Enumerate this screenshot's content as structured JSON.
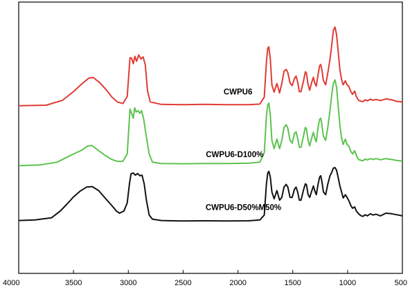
{
  "chart_data": {
    "type": "line",
    "title": "",
    "xlabel": "",
    "ylabel": "",
    "xlim": [
      4000,
      500
    ],
    "ylim": [
      0,
      1
    ],
    "x_ticks": [
      4000,
      3500,
      3000,
      2500,
      2000,
      1500,
      1000,
      500
    ],
    "x_tick_labels": [
      "4000",
      "3500",
      "3000",
      "2500",
      "2000",
      "1500",
      "1000",
      "500"
    ],
    "grid": false,
    "series": [
      {
        "name": "CWPU6",
        "color": "#e03a33",
        "label_at": [
          2000,
          0.66
        ],
        "points": [
          [
            4000,
            0.618
          ],
          [
            3750,
            0.62
          ],
          [
            3600,
            0.638
          ],
          [
            3500,
            0.67
          ],
          [
            3420,
            0.7
          ],
          [
            3360,
            0.72
          ],
          [
            3320,
            0.722
          ],
          [
            3260,
            0.703
          ],
          [
            3200,
            0.676
          ],
          [
            3150,
            0.65
          ],
          [
            3100,
            0.632
          ],
          [
            3050,
            0.626
          ],
          [
            3010,
            0.652
          ],
          [
            2985,
            0.795
          ],
          [
            2970,
            0.793
          ],
          [
            2955,
            0.773
          ],
          [
            2940,
            0.8
          ],
          [
            2925,
            0.782
          ],
          [
            2905,
            0.805
          ],
          [
            2885,
            0.79
          ],
          [
            2865,
            0.798
          ],
          [
            2845,
            0.768
          ],
          [
            2825,
            0.673
          ],
          [
            2800,
            0.632
          ],
          [
            2700,
            0.623
          ],
          [
            2500,
            0.622
          ],
          [
            2300,
            0.623
          ],
          [
            2100,
            0.622
          ],
          [
            1900,
            0.622
          ],
          [
            1800,
            0.624
          ],
          [
            1760,
            0.65
          ],
          [
            1740,
            0.78
          ],
          [
            1728,
            0.83
          ],
          [
            1718,
            0.835
          ],
          [
            1705,
            0.79
          ],
          [
            1690,
            0.695
          ],
          [
            1670,
            0.668
          ],
          [
            1645,
            0.7
          ],
          [
            1620,
            0.665
          ],
          [
            1600,
            0.7
          ],
          [
            1580,
            0.745
          ],
          [
            1560,
            0.752
          ],
          [
            1545,
            0.74
          ],
          [
            1525,
            0.702
          ],
          [
            1505,
            0.692
          ],
          [
            1485,
            0.718
          ],
          [
            1470,
            0.727
          ],
          [
            1455,
            0.705
          ],
          [
            1440,
            0.67
          ],
          [
            1425,
            0.67
          ],
          [
            1400,
            0.712
          ],
          [
            1385,
            0.743
          ],
          [
            1375,
            0.738
          ],
          [
            1360,
            0.695
          ],
          [
            1345,
            0.675
          ],
          [
            1330,
            0.7
          ],
          [
            1312,
            0.723
          ],
          [
            1300,
            0.702
          ],
          [
            1285,
            0.69
          ],
          [
            1268,
            0.735
          ],
          [
            1255,
            0.765
          ],
          [
            1245,
            0.77
          ],
          [
            1235,
            0.752
          ],
          [
            1220,
            0.71
          ],
          [
            1200,
            0.695
          ],
          [
            1180,
            0.74
          ],
          [
            1160,
            0.79
          ],
          [
            1145,
            0.84
          ],
          [
            1130,
            0.895
          ],
          [
            1115,
            0.908
          ],
          [
            1100,
            0.88
          ],
          [
            1085,
            0.815
          ],
          [
            1070,
            0.75
          ],
          [
            1055,
            0.715
          ],
          [
            1040,
            0.695
          ],
          [
            1020,
            0.71
          ],
          [
            1005,
            0.695
          ],
          [
            990,
            0.69
          ],
          [
            970,
            0.67
          ],
          [
            955,
            0.66
          ],
          [
            935,
            0.672
          ],
          [
            920,
            0.652
          ],
          [
            900,
            0.638
          ],
          [
            880,
            0.635
          ],
          [
            860,
            0.633
          ],
          [
            840,
            0.64
          ],
          [
            820,
            0.636
          ],
          [
            790,
            0.642
          ],
          [
            770,
            0.638
          ],
          [
            740,
            0.641
          ],
          [
            700,
            0.637
          ],
          [
            650,
            0.643
          ],
          [
            600,
            0.64
          ],
          [
            550,
            0.634
          ],
          [
            500,
            0.632
          ]
        ]
      },
      {
        "name": "CWPU6-D100%",
        "color": "#5cc24e",
        "label_at": [
          2030,
          0.429
        ],
        "points": [
          [
            4000,
            0.397
          ],
          [
            3800,
            0.4
          ],
          [
            3650,
            0.41
          ],
          [
            3560,
            0.428
          ],
          [
            3500,
            0.44
          ],
          [
            3420,
            0.455
          ],
          [
            3370,
            0.47
          ],
          [
            3330,
            0.471
          ],
          [
            3280,
            0.455
          ],
          [
            3220,
            0.437
          ],
          [
            3150,
            0.42
          ],
          [
            3100,
            0.413
          ],
          [
            3050,
            0.413
          ],
          [
            3010,
            0.44
          ],
          [
            2985,
            0.605
          ],
          [
            2970,
            0.59
          ],
          [
            2955,
            0.572
          ],
          [
            2942,
            0.61
          ],
          [
            2928,
            0.595
          ],
          [
            2912,
            0.6
          ],
          [
            2895,
            0.59
          ],
          [
            2880,
            0.6
          ],
          [
            2860,
            0.57
          ],
          [
            2840,
            0.515
          ],
          [
            2810,
            0.44
          ],
          [
            2780,
            0.41
          ],
          [
            2700,
            0.405
          ],
          [
            2500,
            0.404
          ],
          [
            2300,
            0.405
          ],
          [
            2100,
            0.405
          ],
          [
            1900,
            0.406
          ],
          [
            1800,
            0.41
          ],
          [
            1760,
            0.445
          ],
          [
            1740,
            0.58
          ],
          [
            1728,
            0.62
          ],
          [
            1718,
            0.628
          ],
          [
            1705,
            0.585
          ],
          [
            1690,
            0.49
          ],
          [
            1670,
            0.46
          ],
          [
            1645,
            0.495
          ],
          [
            1620,
            0.46
          ],
          [
            1600,
            0.49
          ],
          [
            1580,
            0.538
          ],
          [
            1560,
            0.548
          ],
          [
            1545,
            0.535
          ],
          [
            1525,
            0.49
          ],
          [
            1505,
            0.48
          ],
          [
            1485,
            0.515
          ],
          [
            1470,
            0.522
          ],
          [
            1455,
            0.498
          ],
          [
            1440,
            0.465
          ],
          [
            1425,
            0.465
          ],
          [
            1400,
            0.51
          ],
          [
            1385,
            0.538
          ],
          [
            1375,
            0.533
          ],
          [
            1360,
            0.49
          ],
          [
            1345,
            0.47
          ],
          [
            1330,
            0.495
          ],
          [
            1312,
            0.52
          ],
          [
            1300,
            0.5
          ],
          [
            1285,
            0.485
          ],
          [
            1268,
            0.54
          ],
          [
            1255,
            0.568
          ],
          [
            1245,
            0.572
          ],
          [
            1235,
            0.55
          ],
          [
            1220,
            0.505
          ],
          [
            1200,
            0.49
          ],
          [
            1180,
            0.54
          ],
          [
            1160,
            0.6
          ],
          [
            1145,
            0.655
          ],
          [
            1130,
            0.7
          ],
          [
            1115,
            0.713
          ],
          [
            1100,
            0.685
          ],
          [
            1085,
            0.615
          ],
          [
            1070,
            0.545
          ],
          [
            1055,
            0.5
          ],
          [
            1040,
            0.475
          ],
          [
            1020,
            0.495
          ],
          [
            1005,
            0.475
          ],
          [
            990,
            0.47
          ],
          [
            970,
            0.45
          ],
          [
            955,
            0.44
          ],
          [
            935,
            0.452
          ],
          [
            920,
            0.435
          ],
          [
            900,
            0.42
          ],
          [
            880,
            0.417
          ],
          [
            860,
            0.415
          ],
          [
            840,
            0.422
          ],
          [
            820,
            0.418
          ],
          [
            790,
            0.423
          ],
          [
            770,
            0.42
          ],
          [
            740,
            0.423
          ],
          [
            700,
            0.419
          ],
          [
            650,
            0.423
          ],
          [
            600,
            0.42
          ],
          [
            550,
            0.416
          ],
          [
            500,
            0.414
          ]
        ]
      },
      {
        "name": "CWPU6-D50%M50%",
        "color": "#111111",
        "label_at": [
          1950,
          0.233
        ],
        "points": [
          [
            4000,
            0.195
          ],
          [
            3850,
            0.197
          ],
          [
            3700,
            0.205
          ],
          [
            3620,
            0.23
          ],
          [
            3560,
            0.255
          ],
          [
            3500,
            0.282
          ],
          [
            3440,
            0.303
          ],
          [
            3380,
            0.318
          ],
          [
            3330,
            0.32
          ],
          [
            3270,
            0.305
          ],
          [
            3210,
            0.277
          ],
          [
            3150,
            0.25
          ],
          [
            3110,
            0.23
          ],
          [
            3080,
            0.222
          ],
          [
            3040,
            0.23
          ],
          [
            3010,
            0.26
          ],
          [
            2990,
            0.33
          ],
          [
            2975,
            0.367
          ],
          [
            2955,
            0.37
          ],
          [
            2935,
            0.362
          ],
          [
            2915,
            0.368
          ],
          [
            2895,
            0.36
          ],
          [
            2875,
            0.362
          ],
          [
            2855,
            0.33
          ],
          [
            2835,
            0.27
          ],
          [
            2810,
            0.215
          ],
          [
            2780,
            0.2
          ],
          [
            2700,
            0.195
          ],
          [
            2500,
            0.193
          ],
          [
            2300,
            0.194
          ],
          [
            2100,
            0.193
          ],
          [
            1900,
            0.194
          ],
          [
            1800,
            0.197
          ],
          [
            1760,
            0.215
          ],
          [
            1740,
            0.33
          ],
          [
            1728,
            0.37
          ],
          [
            1718,
            0.376
          ],
          [
            1705,
            0.355
          ],
          [
            1690,
            0.3
          ],
          [
            1670,
            0.275
          ],
          [
            1645,
            0.305
          ],
          [
            1620,
            0.27
          ],
          [
            1600,
            0.28
          ],
          [
            1580,
            0.318
          ],
          [
            1560,
            0.328
          ],
          [
            1545,
            0.318
          ],
          [
            1525,
            0.28
          ],
          [
            1505,
            0.28
          ],
          [
            1485,
            0.31
          ],
          [
            1470,
            0.318
          ],
          [
            1455,
            0.3
          ],
          [
            1440,
            0.27
          ],
          [
            1425,
            0.27
          ],
          [
            1400,
            0.31
          ],
          [
            1385,
            0.33
          ],
          [
            1375,
            0.327
          ],
          [
            1360,
            0.29
          ],
          [
            1345,
            0.28
          ],
          [
            1330,
            0.3
          ],
          [
            1312,
            0.322
          ],
          [
            1300,
            0.305
          ],
          [
            1285,
            0.29
          ],
          [
            1268,
            0.33
          ],
          [
            1255,
            0.355
          ],
          [
            1245,
            0.36
          ],
          [
            1235,
            0.34
          ],
          [
            1220,
            0.3
          ],
          [
            1200,
            0.29
          ],
          [
            1180,
            0.33
          ],
          [
            1160,
            0.36
          ],
          [
            1145,
            0.372
          ],
          [
            1130,
            0.388
          ],
          [
            1115,
            0.39
          ],
          [
            1100,
            0.38
          ],
          [
            1085,
            0.352
          ],
          [
            1070,
            0.322
          ],
          [
            1055,
            0.3
          ],
          [
            1040,
            0.278
          ],
          [
            1020,
            0.29
          ],
          [
            1005,
            0.28
          ],
          [
            990,
            0.27
          ],
          [
            970,
            0.25
          ],
          [
            955,
            0.24
          ],
          [
            935,
            0.245
          ],
          [
            920,
            0.23
          ],
          [
            900,
            0.22
          ],
          [
            880,
            0.213
          ],
          [
            860,
            0.21
          ],
          [
            840,
            0.216
          ],
          [
            820,
            0.212
          ],
          [
            790,
            0.22
          ],
          [
            770,
            0.215
          ],
          [
            740,
            0.218
          ],
          [
            700,
            0.212
          ],
          [
            650,
            0.222
          ],
          [
            600,
            0.22
          ],
          [
            550,
            0.216
          ],
          [
            500,
            0.212
          ]
        ]
      }
    ]
  }
}
